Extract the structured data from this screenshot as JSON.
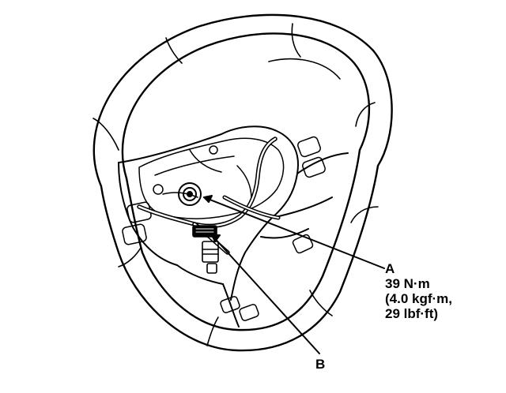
{
  "callouts": {
    "a": {
      "letter": "A",
      "torque_nm": "39 N·m",
      "torque_kgfm": "(4.0 kgf·m,",
      "torque_lbfft": "29 lbf·ft)"
    },
    "b": {
      "letter": "B"
    }
  },
  "colors": {
    "ink": "#000000",
    "background": "#ffffff"
  },
  "icons": [
    "steering-wheel",
    "nut",
    "wire-harness",
    "connector"
  ]
}
